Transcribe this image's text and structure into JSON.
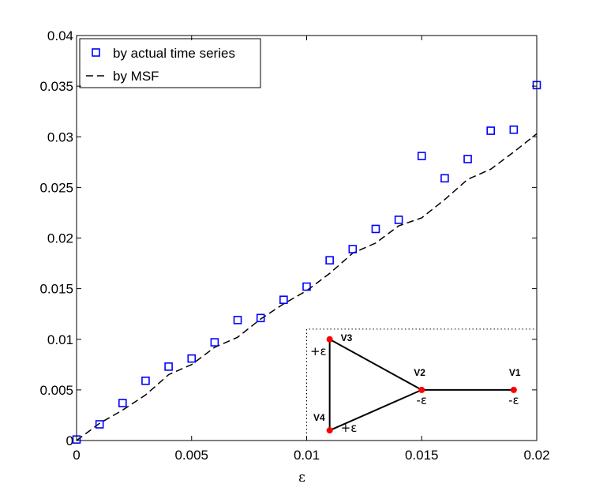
{
  "chart_data": {
    "type": "scatter",
    "xlabel": "ε",
    "ylabel": "",
    "xlim": [
      0,
      0.02
    ],
    "ylim": [
      0,
      0.04
    ],
    "x_ticks": [
      {
        "value": 0,
        "label": "0"
      },
      {
        "value": 0.005,
        "label": "0.005"
      },
      {
        "value": 0.01,
        "label": "0.01"
      },
      {
        "value": 0.015,
        "label": "0.015"
      },
      {
        "value": 0.02,
        "label": "0.02"
      }
    ],
    "y_ticks": [
      {
        "value": 0,
        "label": "0"
      },
      {
        "value": 0.005,
        "label": "0.005"
      },
      {
        "value": 0.01,
        "label": "0.01"
      },
      {
        "value": 0.015,
        "label": "0.015"
      },
      {
        "value": 0.02,
        "label": "0.02"
      },
      {
        "value": 0.025,
        "label": "0.025"
      },
      {
        "value": 0.03,
        "label": "0.03"
      },
      {
        "value": 0.035,
        "label": "0.035"
      },
      {
        "value": 0.04,
        "label": "0.04"
      }
    ],
    "grid": false,
    "legend_position": "top-left",
    "series": [
      {
        "name": "by actual time series",
        "style": "square-markers",
        "color": "#0000ff",
        "x": [
          0,
          0.001,
          0.002,
          0.003,
          0.004,
          0.005,
          0.006,
          0.007,
          0.008,
          0.009,
          0.01,
          0.011,
          0.012,
          0.013,
          0.014,
          0.015,
          0.016,
          0.017,
          0.018,
          0.019,
          0.02
        ],
        "y": [
          0.0001,
          0.0016,
          0.0037,
          0.0059,
          0.0073,
          0.0081,
          0.0097,
          0.0119,
          0.0121,
          0.0139,
          0.0152,
          0.0178,
          0.0189,
          0.0209,
          0.0218,
          0.0281,
          0.0259,
          0.0278,
          0.0306,
          0.0307,
          0.0351
        ]
      },
      {
        "name": "by MSF",
        "style": "dashed-line",
        "color": "#000000",
        "x": [
          0,
          0.001,
          0.002,
          0.003,
          0.004,
          0.005,
          0.006,
          0.007,
          0.008,
          0.009,
          0.01,
          0.011,
          0.012,
          0.013,
          0.014,
          0.015,
          0.016,
          0.017,
          0.018,
          0.019,
          0.02
        ],
        "y": [
          0,
          0.0017,
          0.003,
          0.0045,
          0.0065,
          0.0075,
          0.0092,
          0.0102,
          0.012,
          0.0135,
          0.0148,
          0.0165,
          0.0185,
          0.0195,
          0.0212,
          0.022,
          0.0238,
          0.0258,
          0.0268,
          0.0285,
          0.0303
        ]
      }
    ],
    "inset": {
      "description_visible_labels": true,
      "nodes": [
        {
          "id": "v1",
          "label": "V1",
          "weight": "-ε"
        },
        {
          "id": "v2",
          "label": "V2",
          "weight": "-ε"
        },
        {
          "id": "v3",
          "label": "V3",
          "weight": "+ε"
        },
        {
          "id": "v4",
          "label": "V4",
          "weight": "+ε"
        }
      ],
      "edges": [
        [
          "v3",
          "v4"
        ],
        [
          "v3",
          "v2"
        ],
        [
          "v4",
          "v2"
        ],
        [
          "v2",
          "v1"
        ]
      ],
      "node_color": "#ff0000"
    }
  }
}
